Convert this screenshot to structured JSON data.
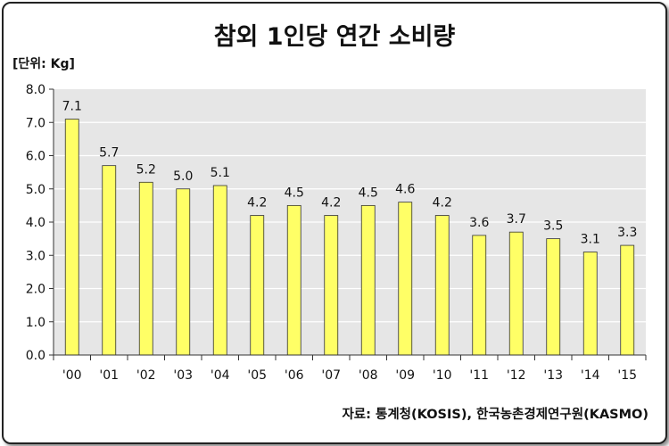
{
  "chart_data": {
    "type": "bar",
    "title": "참외 1인당 연간 소비량",
    "unit_label": "[단위: Kg]",
    "categories": [
      "'00",
      "'01",
      "'02",
      "'03",
      "'04",
      "'05",
      "'06",
      "'07",
      "'08",
      "'09",
      "'10",
      "'11",
      "'12",
      "'13",
      "'14",
      "'15"
    ],
    "values": [
      7.1,
      5.7,
      5.2,
      5.0,
      5.1,
      4.2,
      4.5,
      4.2,
      4.5,
      4.6,
      4.2,
      3.6,
      3.7,
      3.5,
      3.1,
      3.3
    ],
    "value_labels": [
      "7.1",
      "5.7",
      "5.2",
      "5.0",
      "5.1",
      "4.2",
      "4.5",
      "4.2",
      "4.5",
      "4.6",
      "4.2",
      "3.6",
      "3.7",
      "3.5",
      "3.1",
      "3.3"
    ],
    "yticks": [
      "0.0",
      "1.0",
      "2.0",
      "3.0",
      "4.0",
      "5.0",
      "6.0",
      "7.0",
      "8.0"
    ],
    "ylim": [
      0,
      8
    ],
    "grid": true,
    "legend": false,
    "source": "자료: 통계청(KOSIS), 한국농촌경제연구원(KASMO)",
    "colors": {
      "bar_fill": "#ffff66",
      "bar_stroke": "#333333",
      "plot_background": "#e6e6e6",
      "grid_line": "#ffffff"
    }
  }
}
